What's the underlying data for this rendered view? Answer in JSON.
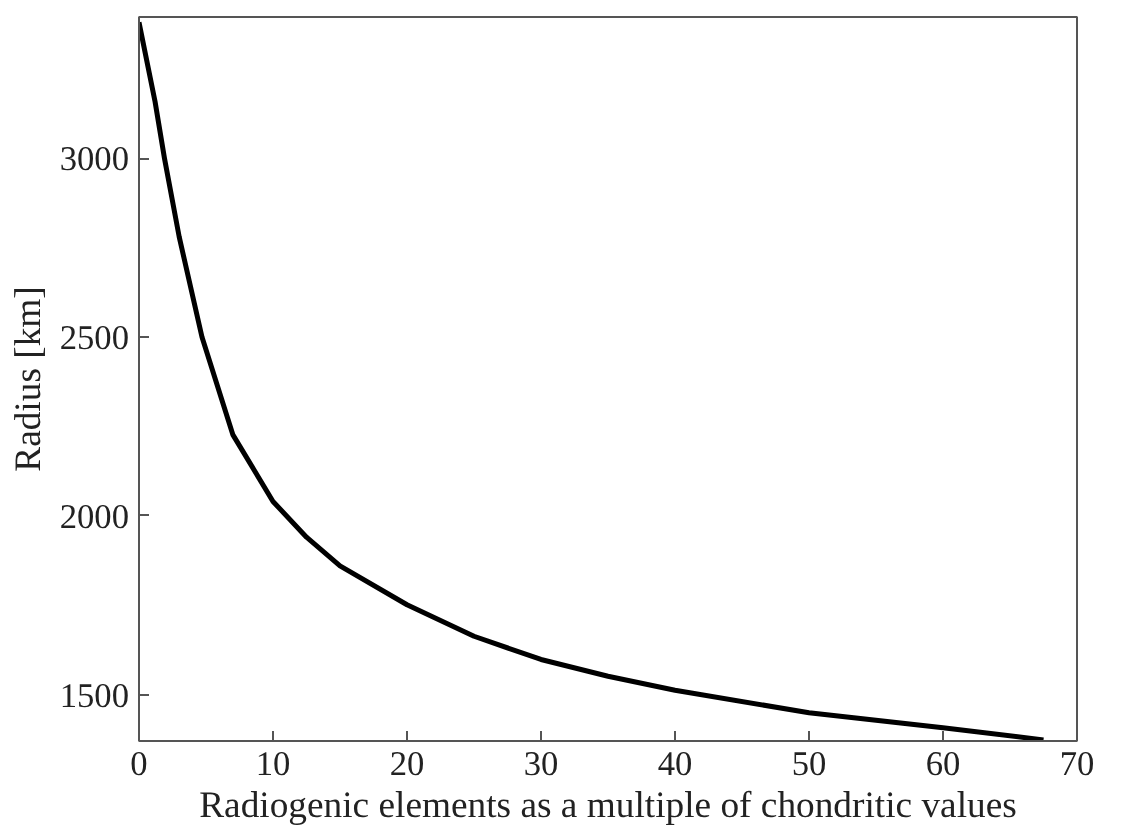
{
  "chart_data": {
    "type": "line",
    "xlabel": "Radiogenic elements as a multiple of chondritic values",
    "ylabel": "Radius [km]",
    "x": [
      0,
      1.2,
      1.9,
      3,
      4.7,
      7,
      10,
      12.5,
      15,
      20,
      25,
      30,
      35,
      40,
      50,
      60,
      67.5
    ],
    "series": [
      {
        "color": "#000000",
        "values": [
          3380,
          3158,
          3000,
          2780,
          2500,
          2227,
          2040,
          1940,
          1860,
          1751,
          1663,
          1598,
          1551,
          1512,
          1449,
          1407,
          1373
        ]
      }
    ],
    "xlim": [
      0,
      70
    ],
    "ylim": [
      1370,
      3395
    ],
    "xticks": [
      0,
      10,
      20,
      30,
      40,
      50,
      60,
      70
    ],
    "yticks": [
      1500,
      2000,
      2500,
      3000
    ],
    "line_style": "solid"
  }
}
